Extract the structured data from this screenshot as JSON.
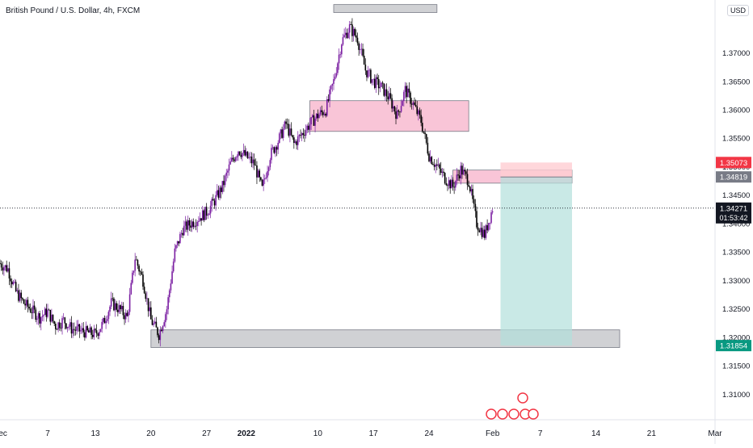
{
  "ticker": "British Pound / U.S. Dollar, 4h, FXCM",
  "currency": "USD",
  "colors": {
    "up": "#7b1fa2",
    "down": "#000000",
    "supply_zone": "#f8bbd0",
    "demand_zone": "#c8c9cc",
    "target_zone": "#b2dfdb",
    "stop_zone": "#ffcdd2",
    "price_line": "#131722",
    "entry_tag": "#787b86",
    "stop_tag": "#f23645",
    "target_tag": "#089981",
    "axis_text": "#131722"
  },
  "price_tag": {
    "price": "1.34271",
    "countdown": "01:53:42"
  },
  "chart_data": {
    "type": "candlestick",
    "timeframe": "4h",
    "y_range": [
      1.3055,
      1.3793
    ],
    "y_ticks": [
      "1.31000",
      "1.31500",
      "1.32000",
      "1.32500",
      "1.33000",
      "1.33500",
      "1.34000",
      "1.34500",
      "1.35000",
      "1.35500",
      "1.36000",
      "1.36500",
      "1.37000"
    ],
    "x_ticks": [
      "Dec",
      "7",
      "13",
      "20",
      "27",
      "2022",
      "10",
      "17",
      "24",
      "Feb",
      "7",
      "14",
      "21",
      "Mar"
    ],
    "x_range": [
      "2021-12-01",
      "2022-03-01"
    ],
    "close_path": [
      [
        "2021-12-01",
        1.333
      ],
      [
        "2021-12-02",
        1.332
      ],
      [
        "2021-12-03",
        1.328
      ],
      [
        "2021-12-04",
        1.326
      ],
      [
        "2021-12-06",
        1.3235
      ],
      [
        "2021-12-07",
        1.3245
      ],
      [
        "2021-12-08",
        1.322
      ],
      [
        "2021-12-09",
        1.323
      ],
      [
        "2021-12-10",
        1.3215
      ],
      [
        "2021-12-13",
        1.3205
      ],
      [
        "2021-12-14",
        1.3225
      ],
      [
        "2021-12-15",
        1.326
      ],
      [
        "2021-12-16",
        1.325
      ],
      [
        "2021-12-17",
        1.3235
      ],
      [
        "2021-12-18",
        1.334
      ],
      [
        "2021-12-19",
        1.33
      ],
      [
        "2021-12-20",
        1.323
      ],
      [
        "2021-12-21",
        1.3205
      ],
      [
        "2021-12-22",
        1.325
      ],
      [
        "2021-12-23",
        1.335
      ],
      [
        "2021-12-24",
        1.339
      ],
      [
        "2021-12-26",
        1.341
      ],
      [
        "2021-12-27",
        1.342
      ],
      [
        "2021-12-28",
        1.344
      ],
      [
        "2021-12-29",
        1.3465
      ],
      [
        "2021-12-30",
        1.3505
      ],
      [
        "2021-12-31",
        1.353
      ],
      [
        "2022-01-02",
        1.3505
      ],
      [
        "2022-01-03",
        1.346
      ],
      [
        "2022-01-04",
        1.352
      ],
      [
        "2022-01-05",
        1.3545
      ],
      [
        "2022-01-06",
        1.3575
      ],
      [
        "2022-01-07",
        1.354
      ],
      [
        "2022-01-09",
        1.3575
      ],
      [
        "2022-01-10",
        1.359
      ],
      [
        "2022-01-11",
        1.36
      ],
      [
        "2022-01-12",
        1.365
      ],
      [
        "2022-01-13",
        1.372
      ],
      [
        "2022-01-14",
        1.3745
      ],
      [
        "2022-01-15",
        1.3725
      ],
      [
        "2022-01-16",
        1.367
      ],
      [
        "2022-01-17",
        1.365
      ],
      [
        "2022-01-18",
        1.364
      ],
      [
        "2022-01-19",
        1.362
      ],
      [
        "2022-01-20",
        1.359
      ],
      [
        "2022-01-21",
        1.3635
      ],
      [
        "2022-01-22",
        1.361
      ],
      [
        "2022-01-23",
        1.358
      ],
      [
        "2022-01-24",
        1.352
      ],
      [
        "2022-01-25",
        1.35
      ],
      [
        "2022-01-26",
        1.348
      ],
      [
        "2022-01-27",
        1.3465
      ],
      [
        "2022-01-28",
        1.3495
      ],
      [
        "2022-01-29",
        1.3475
      ],
      [
        "2022-01-30",
        1.34
      ],
      [
        "2022-01-31",
        1.338
      ],
      [
        "2022-02-01",
        1.3427
      ]
    ],
    "zones": [
      {
        "kind": "demand",
        "from": "2022-01-12",
        "to": "2022-01-25",
        "top": 1.3785,
        "bottom": 1.3771
      },
      {
        "kind": "supply",
        "from": "2022-01-09",
        "to": "2022-01-29",
        "top": 1.3616,
        "bottom": 1.3562
      },
      {
        "kind": "supply",
        "from": "2022-01-27",
        "to": "2022-02-11",
        "top": 1.3494,
        "bottom": 1.3471
      },
      {
        "kind": "demand",
        "from": "2021-12-20",
        "to": "2022-02-17",
        "top": 1.3213,
        "bottom": 1.3182
      }
    ],
    "short_position": {
      "from": "2022-02-02",
      "to": "2022-02-11",
      "entry": 1.34819,
      "stop": 1.35073,
      "target": 1.31854
    },
    "price_labels": {
      "stop": "1.35073",
      "entry": "1.34819",
      "target": "1.31854"
    }
  }
}
